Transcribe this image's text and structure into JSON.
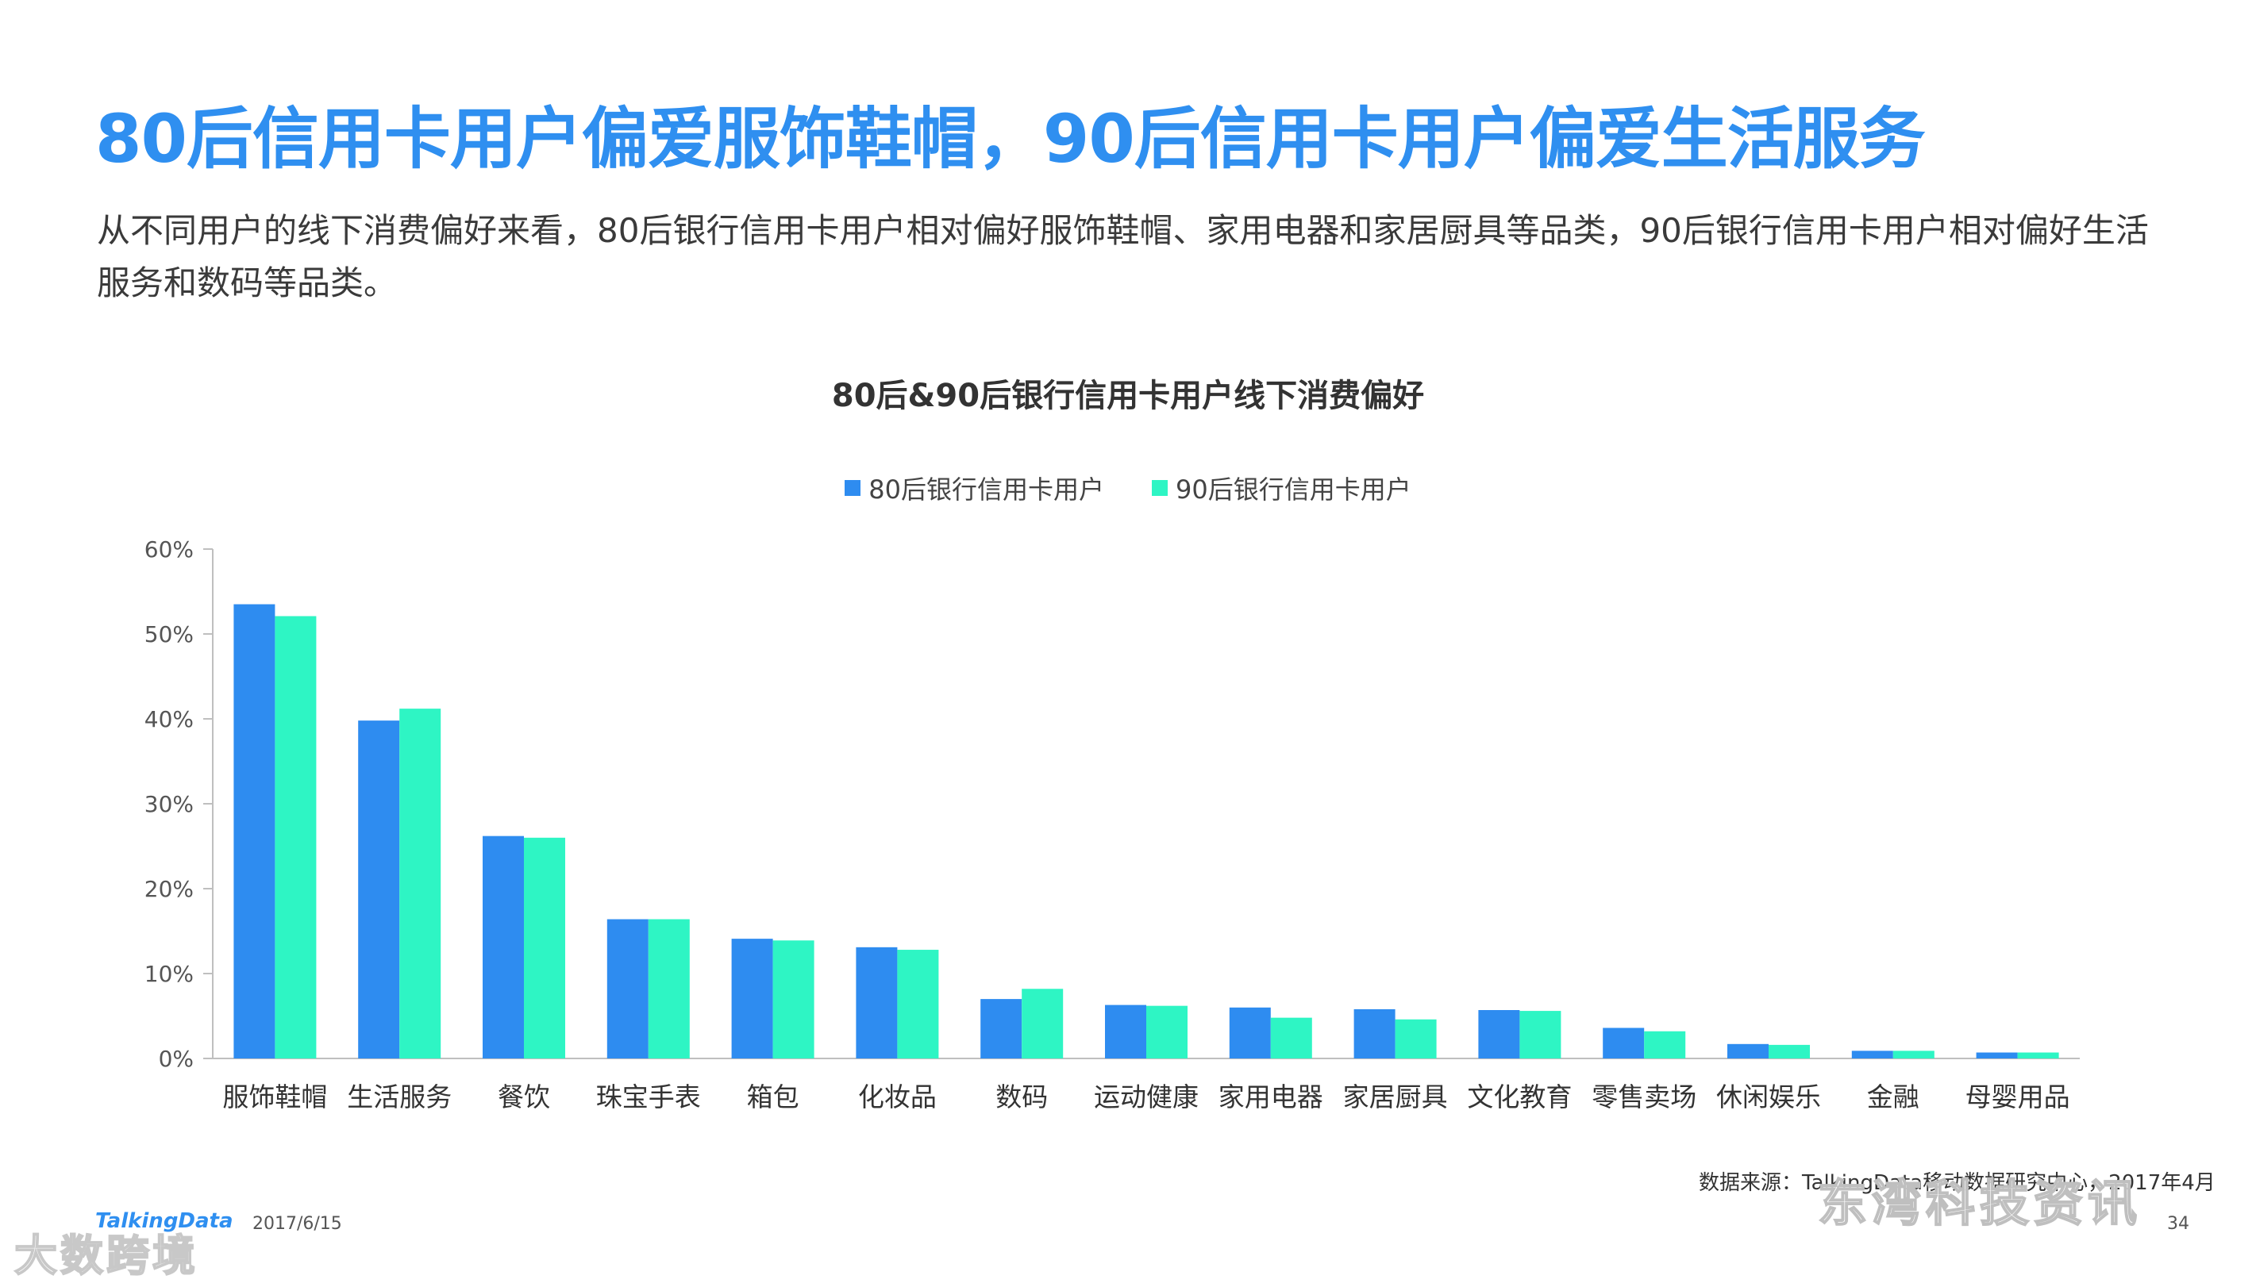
{
  "slide": {
    "headline": "80后信用卡用户偏爱服饰鞋帽，90后信用卡用户偏爱生活服务",
    "intro": "从不同用户的线下消费偏好来看，80后银行信用卡用户相对偏好服饰鞋帽、家用电器和家居厨具等品类，90后银行信用卡用户相对偏好生活服务和数码等品类。",
    "source": "数据来源：TalkingData移动数据研究中心，2017年4月",
    "page_number": "34",
    "brand": "TalkingData",
    "date": "2017/6/15",
    "watermark_left": "大数跨境",
    "watermark_right": "东湾科技资讯"
  },
  "colors": {
    "headline": "#2f8ff0",
    "series_80": "#2e8cf0",
    "series_90": "#2ef5c4",
    "axis": "#bfbfbf",
    "text": "#333333"
  },
  "chart_data": {
    "type": "bar",
    "title": "80后&90后银行信用卡用户线下消费偏好",
    "xlabel": "",
    "ylabel": "",
    "ylim": [
      0,
      60
    ],
    "y_ticks": [
      "0%",
      "10%",
      "20%",
      "30%",
      "40%",
      "50%",
      "60%"
    ],
    "legend_position": "top-center",
    "grid": false,
    "categories": [
      "服饰鞋帽",
      "生活服务",
      "餐饮",
      "珠宝手表",
      "箱包",
      "化妆品",
      "数码",
      "运动健康",
      "家用电器",
      "家居厨具",
      "文化教育",
      "零售卖场",
      "休闲娱乐",
      "金融",
      "母婴用品"
    ],
    "series": [
      {
        "name": "80后银行信用卡用户",
        "color": "#2e8cf0",
        "values": [
          53.5,
          39.8,
          26.2,
          16.4,
          14.1,
          13.1,
          7.0,
          6.3,
          6.0,
          5.8,
          5.7,
          3.6,
          1.7,
          0.9,
          0.7
        ]
      },
      {
        "name": "90后银行信用卡用户",
        "color": "#2ef5c4",
        "values": [
          52.1,
          41.2,
          26.0,
          16.4,
          13.9,
          12.8,
          8.2,
          6.2,
          4.8,
          4.6,
          5.6,
          3.2,
          1.6,
          0.9,
          0.7
        ]
      }
    ]
  }
}
